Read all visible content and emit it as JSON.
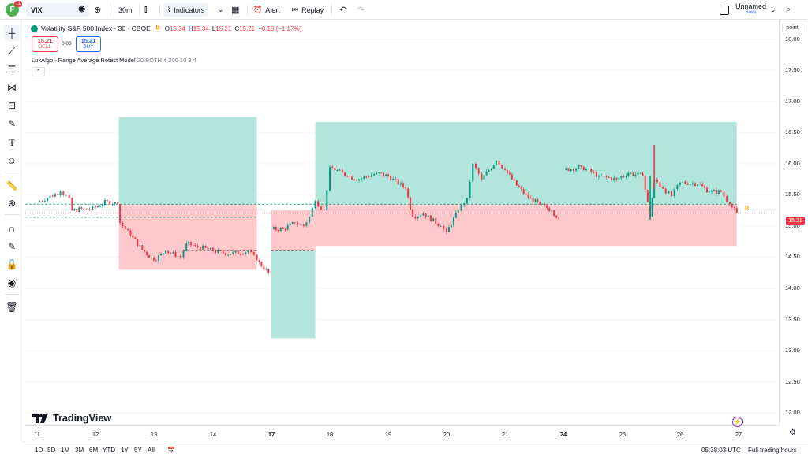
{
  "header": {
    "avatar_letter": "F",
    "notification_count": "11",
    "symbol": "VIX",
    "interval": "30m",
    "indicators_label": "Indicators",
    "alert_label": "Alert",
    "replay_label": "Replay",
    "layout_name": "Unnamed",
    "save_label": "Save"
  },
  "legend": {
    "title": "Volatility S&P 500 Index · 30 · CBOE",
    "badge": "D",
    "open_label": "O",
    "open": "15.34",
    "high_label": "H",
    "high": "15.34",
    "low_label": "L",
    "low": "15.21",
    "close_label": "C",
    "close": "15.21",
    "change": "−0.18 (−1.17%)",
    "sell_price": "15.21",
    "sell_label": "SELL",
    "spread": "0.00",
    "buy_price": "15.21",
    "buy_label": "BUY",
    "study_name": "LuxAlgo - Range Average Retest Model",
    "study_params": "20 BOTH 4 200 10 8 4"
  },
  "price_axis": {
    "mode_label": "point",
    "ticks": [
      "18.00",
      "17.50",
      "17.00",
      "16.50",
      "16.00",
      "15.50",
      "15.00",
      "14.50",
      "14.00",
      "13.50",
      "13.00",
      "12.50",
      "12.00"
    ],
    "last_price": "15.21",
    "last_badge": "D"
  },
  "time_axis": {
    "ticks": [
      "11",
      "12",
      "13",
      "14",
      "17",
      "18",
      "19",
      "20",
      "21",
      "24",
      "25",
      "26",
      "27"
    ],
    "bold_ticks": [
      "17",
      "24"
    ]
  },
  "bottom": {
    "ranges": [
      "1D",
      "5D",
      "1M",
      "3M",
      "6M",
      "YTD",
      "1Y",
      "5Y",
      "All"
    ],
    "clock": "05:38:03 UTC",
    "session": "Full trading hours"
  },
  "branding": {
    "logo_text": "TradingView"
  },
  "colors": {
    "up": "#089981",
    "down": "#f23645",
    "green_zone": "#b2e6dc",
    "red_zone": "#ffc9cc",
    "accent": "#2962ff"
  },
  "chart_data": {
    "type": "candlestick",
    "ylim": [
      11.8,
      18.3
    ],
    "x_range_days": [
      10.98,
      27.2
    ],
    "zones": [
      {
        "kind": "green",
        "x0": 12.4,
        "x1": 14.75,
        "y0": 15.35,
        "y1": 16.75
      },
      {
        "kind": "red",
        "x0": 12.4,
        "x1": 14.75,
        "y0": 14.3,
        "y1": 15.35
      },
      {
        "kind": "green",
        "x0": 17.0,
        "x1": 17.75,
        "y0": 13.2,
        "y1": 14.6
      },
      {
        "kind": "red",
        "x0": 17.0,
        "x1": 17.75,
        "y0": 14.6,
        "y1": 15.25
      },
      {
        "kind": "green",
        "x0": 17.75,
        "x1": 26.97,
        "y0": 15.35,
        "y1": 16.67
      },
      {
        "kind": "red",
        "x0": 17.75,
        "x1": 26.97,
        "y0": 14.68,
        "y1": 15.35
      }
    ],
    "dashed_levels": [
      {
        "value": 15.35,
        "x0": 10.98,
        "x1": 26.97,
        "color": "#089981"
      },
      {
        "value": 15.14,
        "x0": 10.98,
        "x1": 14.75,
        "color": "#089981"
      },
      {
        "value": 14.6,
        "x0": 13.5,
        "x1": 14.75,
        "color": "#787b86"
      },
      {
        "value": 14.6,
        "x0": 17.0,
        "x1": 17.75,
        "color": "#787b86"
      }
    ],
    "series": [
      {
        "day": 11.0,
        "close": 15.38
      },
      {
        "day": 11.4,
        "close": 15.55
      },
      {
        "day": 11.55,
        "close": 15.45
      },
      {
        "day": 11.6,
        "close": 15.25
      },
      {
        "day": 11.8,
        "close": 15.28
      },
      {
        "day": 11.9,
        "close": 15.27
      },
      {
        "day": 12.0,
        "close": 15.3
      },
      {
        "day": 12.2,
        "close": 15.4
      },
      {
        "day": 12.38,
        "close": 15.35
      },
      {
        "day": 12.42,
        "close": 15.05
      },
      {
        "day": 12.6,
        "close": 14.85
      },
      {
        "day": 12.8,
        "close": 14.62
      },
      {
        "day": 13.0,
        "close": 14.45
      },
      {
        "day": 13.2,
        "close": 14.6
      },
      {
        "day": 13.45,
        "close": 14.5
      },
      {
        "day": 13.55,
        "close": 14.72
      },
      {
        "day": 13.7,
        "close": 14.68
      },
      {
        "day": 14.0,
        "close": 14.6
      },
      {
        "day": 14.3,
        "close": 14.55
      },
      {
        "day": 14.6,
        "close": 14.6
      },
      {
        "day": 14.75,
        "close": 14.45
      },
      {
        "day": 14.95,
        "close": 14.25
      },
      {
        "day": 17.0,
        "close": 14.95
      },
      {
        "day": 17.2,
        "close": 14.95
      },
      {
        "day": 17.4,
        "close": 15.05
      },
      {
        "day": 17.55,
        "close": 15.0
      },
      {
        "day": 17.65,
        "close": 15.15
      },
      {
        "day": 17.75,
        "close": 15.4
      },
      {
        "day": 17.9,
        "close": 15.25
      },
      {
        "day": 18.0,
        "close": 15.95
      },
      {
        "day": 18.3,
        "close": 15.8
      },
      {
        "day": 18.5,
        "close": 15.75
      },
      {
        "day": 18.8,
        "close": 15.85
      },
      {
        "day": 19.0,
        "close": 15.8
      },
      {
        "day": 19.3,
        "close": 15.6
      },
      {
        "day": 19.42,
        "close": 15.15
      },
      {
        "day": 19.6,
        "close": 15.2
      },
      {
        "day": 19.9,
        "close": 15.0
      },
      {
        "day": 20.0,
        "close": 14.9
      },
      {
        "day": 20.2,
        "close": 15.25
      },
      {
        "day": 20.35,
        "close": 15.45
      },
      {
        "day": 20.45,
        "close": 16.0
      },
      {
        "day": 20.6,
        "close": 15.75
      },
      {
        "day": 20.85,
        "close": 16.05
      },
      {
        "day": 21.0,
        "close": 15.9
      },
      {
        "day": 21.2,
        "close": 15.65
      },
      {
        "day": 21.4,
        "close": 15.45
      },
      {
        "day": 21.6,
        "close": 15.35
      },
      {
        "day": 21.8,
        "close": 15.25
      },
      {
        "day": 21.92,
        "close": 15.12
      },
      {
        "day": 24.0,
        "close": 15.9
      },
      {
        "day": 24.3,
        "close": 15.95
      },
      {
        "day": 24.6,
        "close": 15.8
      },
      {
        "day": 24.9,
        "close": 15.75
      },
      {
        "day": 25.1,
        "close": 15.85
      },
      {
        "day": 25.35,
        "close": 15.8
      },
      {
        "day": 25.48,
        "close": 15.15
      },
      {
        "day": 25.55,
        "close": 15.75
      },
      {
        "day": 25.7,
        "close": 15.6
      },
      {
        "day": 25.85,
        "close": 15.48
      },
      {
        "day": 26.0,
        "close": 15.7
      },
      {
        "day": 26.3,
        "close": 15.68
      },
      {
        "day": 26.5,
        "close": 15.55
      },
      {
        "day": 26.7,
        "close": 15.55
      },
      {
        "day": 26.85,
        "close": 15.35
      },
      {
        "day": 26.97,
        "close": 15.21
      }
    ],
    "spikes": [
      {
        "day": 25.55,
        "high": 16.3,
        "low": 15.6
      },
      {
        "day": 25.48,
        "high": 15.8,
        "low": 15.1
      }
    ]
  }
}
